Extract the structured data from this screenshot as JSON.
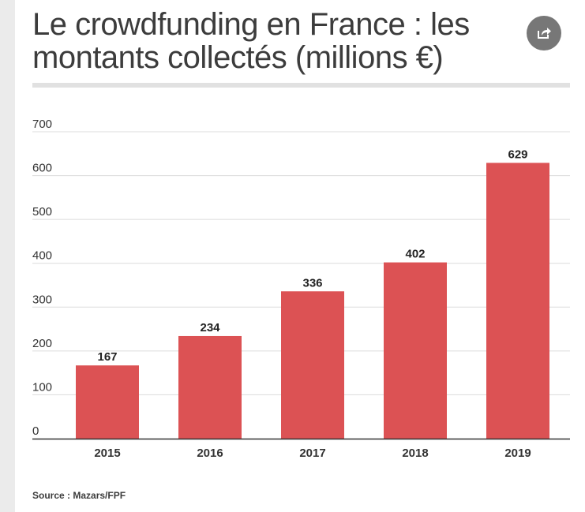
{
  "header": {
    "title": "Le crowdfunding en France : les montants collectés (millions €)"
  },
  "actions": {
    "share_icon": "share-icon"
  },
  "footer": {
    "source": "Source : Mazars/FPF"
  },
  "colors": {
    "bar": "#dc5254",
    "grid": "#dcdcdc",
    "axis": "#333333",
    "text": "#3c3c3c"
  },
  "chart_data": {
    "type": "bar",
    "categories": [
      "2015",
      "2016",
      "2017",
      "2018",
      "2019"
    ],
    "values": [
      167,
      234,
      336,
      402,
      629
    ],
    "data_labels": [
      "167",
      "234",
      "336",
      "402",
      "629"
    ],
    "yticks": [
      0,
      100,
      200,
      300,
      400,
      500,
      600,
      700
    ],
    "ylim": [
      0,
      700
    ],
    "grid": true,
    "legend": "none"
  }
}
